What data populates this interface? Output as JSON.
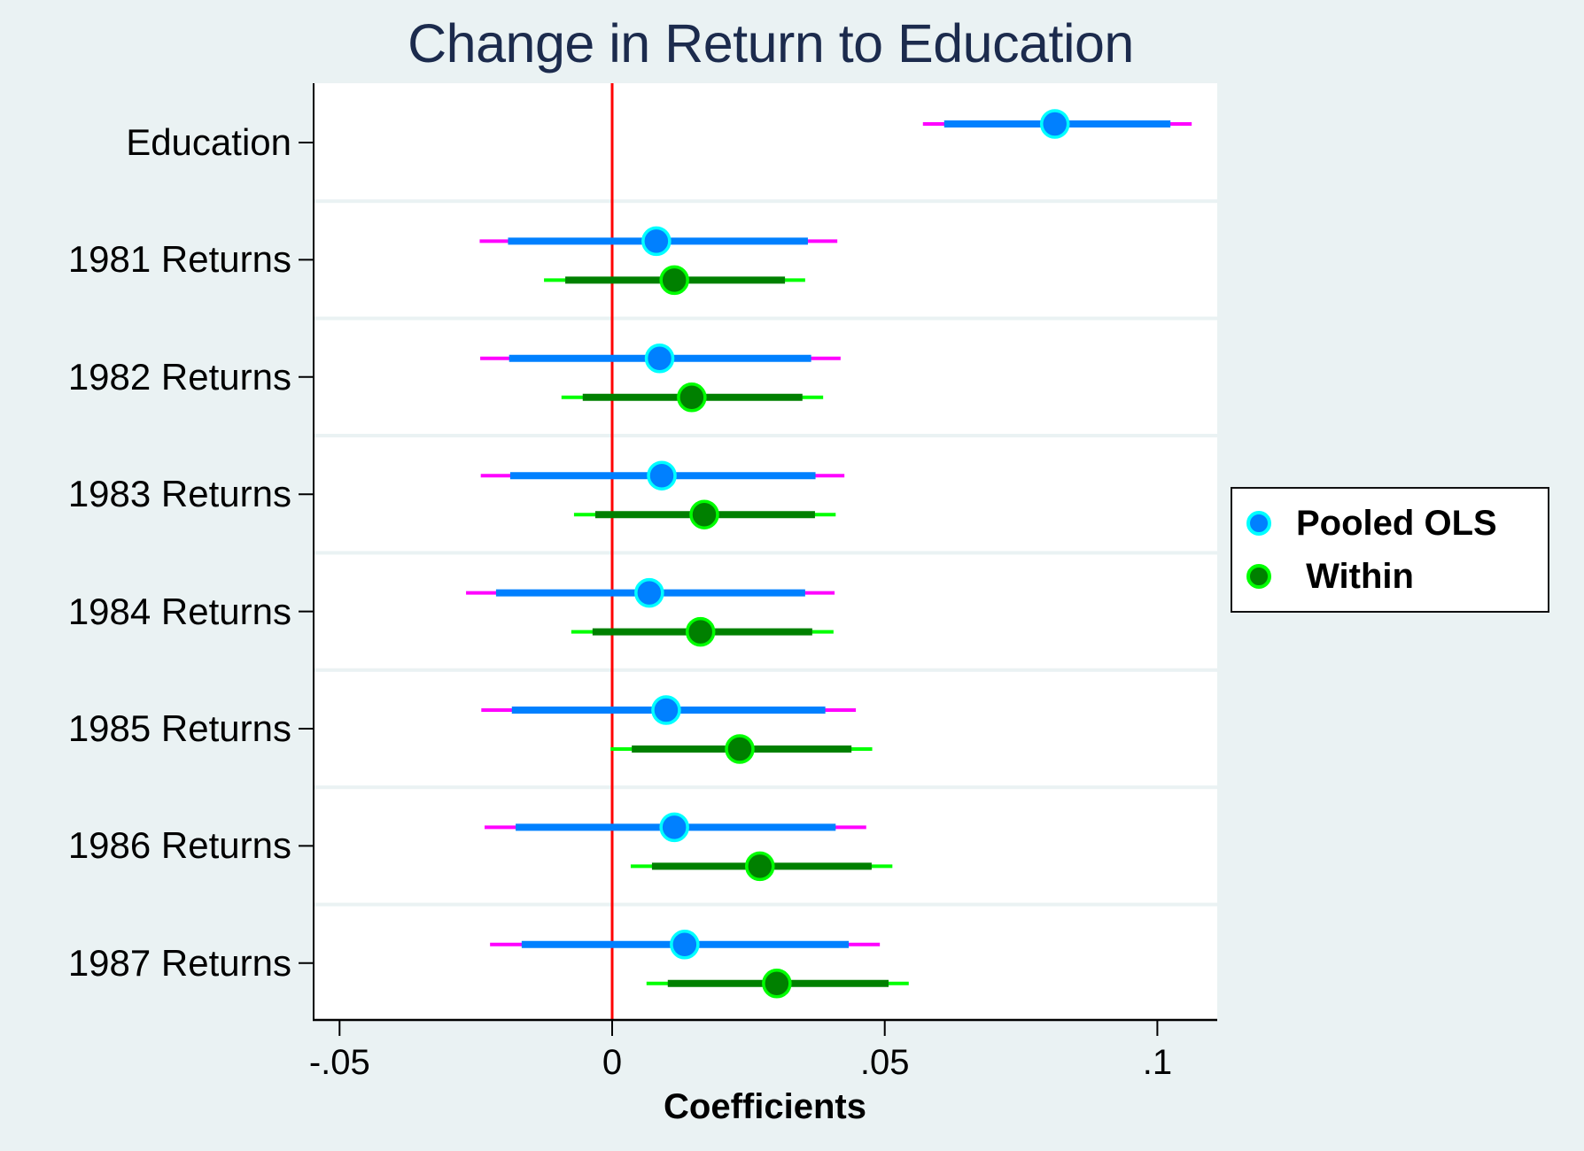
{
  "title": "Change in Return to Education",
  "x_axis": {
    "title": "Coefficients",
    "ticks": [
      {
        "value": -0.05,
        "label": "-.05"
      },
      {
        "value": 0,
        "label": "0"
      },
      {
        "value": 0.05,
        "label": ".05"
      },
      {
        "value": 0.1,
        "label": ".1"
      }
    ]
  },
  "legend": {
    "items": [
      {
        "label": "Pooled OLS",
        "fill": "#0080ff",
        "stroke": "#00ffff"
      },
      {
        "label": " Within",
        "fill": "#008000",
        "stroke": "#00ff00"
      }
    ]
  },
  "colors": {
    "background": "#eaf2f3",
    "plot_background": "#ffffff",
    "reference_line": "#ff0000",
    "ols_ci_inner": "#0080ff",
    "ols_ci_outer": "#ff00ff",
    "within_ci_inner": "#008000",
    "within_ci_outer": "#00ff00"
  },
  "chart_data": {
    "type": "coefficient_plot",
    "title": "Change in Return to Education",
    "xlabel": "Coefficients",
    "ylabel": "",
    "xlim": [
      -0.054,
      0.111
    ],
    "reference_line_x": 0,
    "grid": false,
    "legend_position": "right",
    "categories": [
      "Education",
      "1981 Returns",
      "1982 Returns",
      "1983 Returns",
      "1984 Returns",
      "1985 Returns",
      "1986 Returns",
      "1987 Returns"
    ],
    "series": [
      {
        "name": "Pooled OLS",
        "points": [
          {
            "category": "Education",
            "estimate": 0.0812,
            "ci_inner": [
              0.0609,
              0.1024
            ],
            "ci_outer": [
              0.057,
              0.1063
            ]
          },
          {
            "category": "1981 Returns",
            "estimate": 0.0081,
            "ci_inner": [
              -0.0191,
              0.0359
            ],
            "ci_outer": [
              -0.0243,
              0.0413
            ]
          },
          {
            "category": "1982 Returns",
            "estimate": 0.0087,
            "ci_inner": [
              -0.0189,
              0.0365
            ],
            "ci_outer": [
              -0.0242,
              0.0419
            ]
          },
          {
            "category": "1983 Returns",
            "estimate": 0.0091,
            "ci_inner": [
              -0.0187,
              0.0373
            ],
            "ci_outer": [
              -0.0241,
              0.0426
            ]
          },
          {
            "category": "1984 Returns",
            "estimate": 0.0068,
            "ci_inner": [
              -0.0213,
              0.0354
            ],
            "ci_outer": [
              -0.0268,
              0.0408
            ]
          },
          {
            "category": "1985 Returns",
            "estimate": 0.0099,
            "ci_inner": [
              -0.0184,
              0.0391
            ],
            "ci_outer": [
              -0.024,
              0.0447
            ]
          },
          {
            "category": "1986 Returns",
            "estimate": 0.0114,
            "ci_inner": [
              -0.0177,
              0.041
            ],
            "ci_outer": [
              -0.0234,
              0.0466
            ]
          },
          {
            "category": "1987 Returns",
            "estimate": 0.0133,
            "ci_inner": [
              -0.0166,
              0.0434
            ],
            "ci_outer": [
              -0.0224,
              0.0491
            ]
          }
        ]
      },
      {
        "name": "Within",
        "points": [
          {
            "category": "1981 Returns",
            "estimate": 0.0114,
            "ci_inner": [
              -0.0086,
              0.0317
            ],
            "ci_outer": [
              -0.0125,
              0.0354
            ]
          },
          {
            "category": "1982 Returns",
            "estimate": 0.0146,
            "ci_inner": [
              -0.0054,
              0.0349
            ],
            "ci_outer": [
              -0.0093,
              0.0387
            ]
          },
          {
            "category": "1983 Returns",
            "estimate": 0.0169,
            "ci_inner": [
              -0.0031,
              0.0372
            ],
            "ci_outer": [
              -0.007,
              0.041
            ]
          },
          {
            "category": "1984 Returns",
            "estimate": 0.0162,
            "ci_inner": [
              -0.0036,
              0.0367
            ],
            "ci_outer": [
              -0.0075,
              0.0406
            ]
          },
          {
            "category": "1985 Returns",
            "estimate": 0.0234,
            "ci_inner": [
              0.0036,
              0.0439
            ],
            "ci_outer": [
              -0.0003,
              0.0477
            ]
          },
          {
            "category": "1986 Returns",
            "estimate": 0.0271,
            "ci_inner": [
              0.0073,
              0.0476
            ],
            "ci_outer": [
              0.0034,
              0.0514
            ]
          },
          {
            "category": "1987 Returns",
            "estimate": 0.0302,
            "ci_inner": [
              0.0102,
              0.0507
            ],
            "ci_outer": [
              0.0063,
              0.0544
            ]
          }
        ]
      }
    ]
  }
}
